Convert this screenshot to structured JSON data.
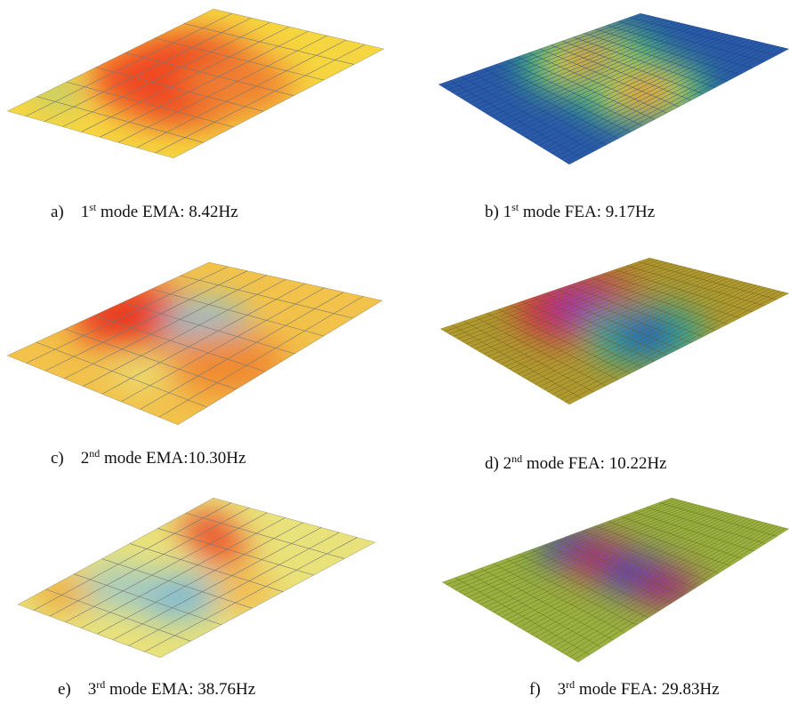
{
  "panels": [
    {
      "letter": "a)",
      "ordinal": "1",
      "suffix": "st",
      "caption": " mode EMA: 8.42Hz"
    },
    {
      "letter": "b)",
      "ordinal": "1",
      "suffix": "st",
      "caption": " mode FEA: 9.17Hz"
    },
    {
      "letter": "c)",
      "ordinal": "2",
      "suffix": "nd",
      "caption": " mode EMA:10.30Hz"
    },
    {
      "letter": "d)",
      "ordinal": "2",
      "suffix": "nd",
      "caption": " mode FEA: 10.22Hz"
    },
    {
      "letter": "e)",
      "ordinal": "3",
      "suffix": "rd",
      "caption": " mode EMA: 38.76Hz"
    },
    {
      "letter": "f)",
      "ordinal": "3",
      "suffix": "rd",
      "caption": " mode FEA: 29.83Hz"
    }
  ]
}
